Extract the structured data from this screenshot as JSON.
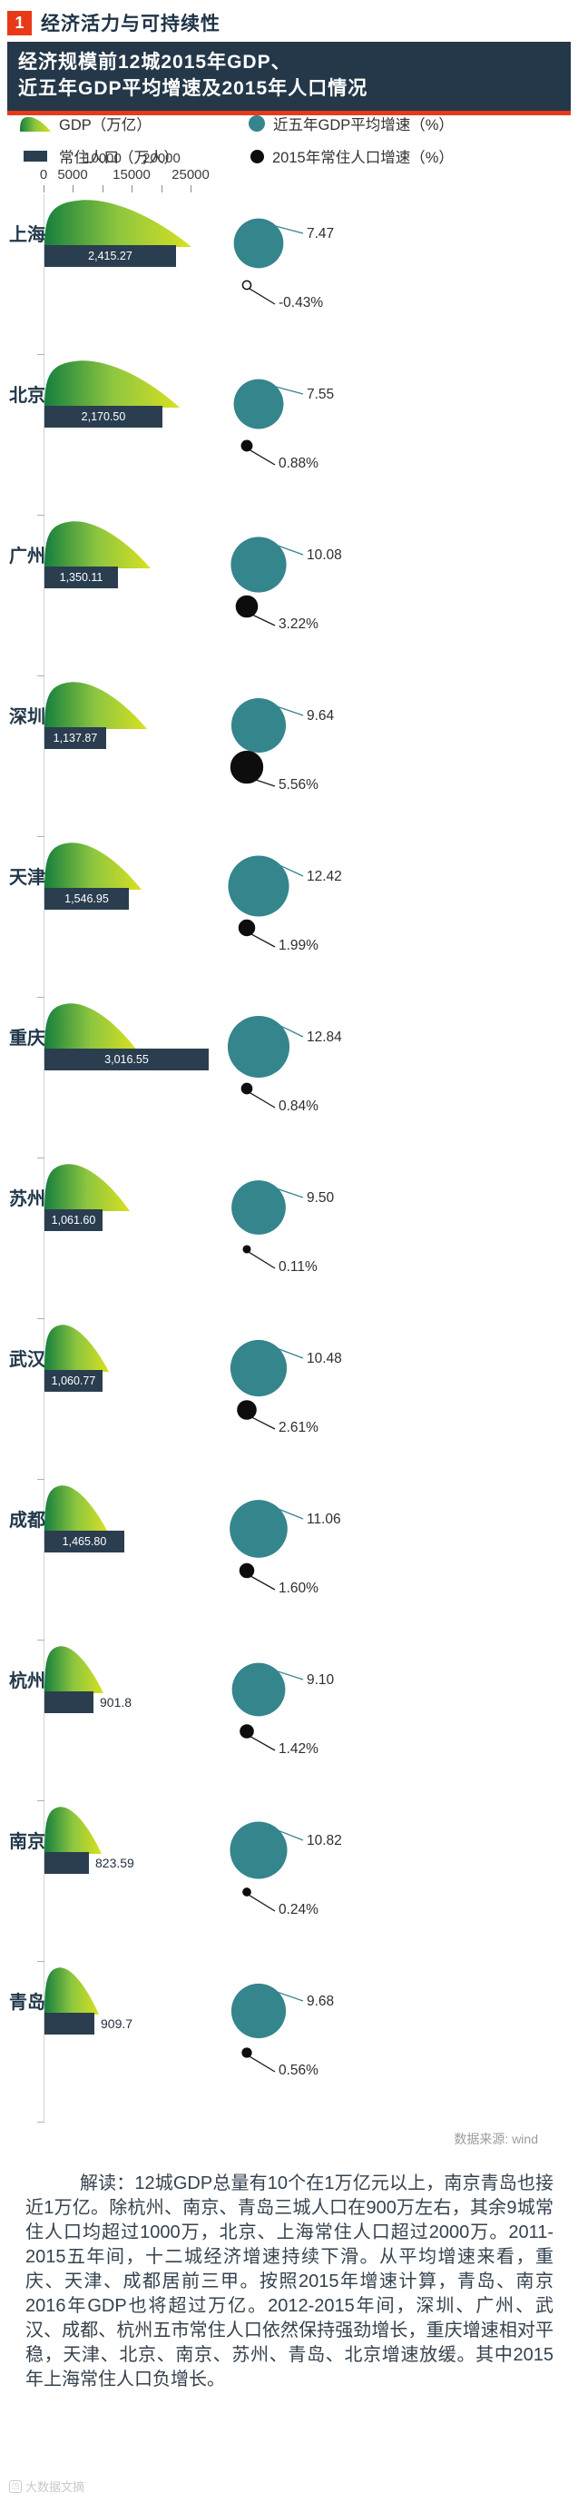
{
  "header": {
    "badge": "1",
    "title": "经济活力与可持续性"
  },
  "subtitle": {
    "line1": "经济规模前12城2015年GDP、",
    "line2": "近五年GDP平均增速及2015年人口情况"
  },
  "legend": {
    "items": [
      {
        "icon": "gdp-leaf-icon",
        "label": "GDP（万亿）"
      },
      {
        "icon": "gdp-growth-circle-icon",
        "label": "近五年GDP平均增速（%）"
      },
      {
        "icon": "population-bar-icon",
        "label": "常住人口（万人）"
      },
      {
        "icon": "population-growth-circle-icon",
        "label": "2015年常住人口增速（%）"
      }
    ]
  },
  "chart_data": {
    "type": "bar",
    "title": "经济规模前12城2015年GDP、近五年GDP平均增速及2015年人口情况",
    "categories": [
      "上海",
      "北京",
      "广州",
      "深圳",
      "天津",
      "重庆",
      "苏州",
      "武汉",
      "成都",
      "杭州",
      "南京",
      "青岛"
    ],
    "series": [
      {
        "name": "GDP（万亿）",
        "note": "estimated from leaf length against 0-25000 axis (亿)",
        "values": [
          2.5,
          2.3,
          1.81,
          1.75,
          1.65,
          1.57,
          1.45,
          1.09,
          1.08,
          1.01,
          0.97,
          0.93
        ]
      },
      {
        "name": "常住人口（万人）",
        "values": [
          2415.27,
          2170.5,
          1350.11,
          1137.87,
          1546.95,
          3016.55,
          1061.6,
          1060.77,
          1465.8,
          901.8,
          823.59,
          909.7
        ],
        "labels": [
          "2,415.27",
          "2,170.50",
          "1,350.11",
          "1,137.87",
          "1,546.95",
          "3,016.55",
          "1,061.60",
          "1,060.77",
          "1,465.80",
          "901.8",
          "823.59",
          "909.7"
        ]
      },
      {
        "name": "近五年GDP平均增速（%）",
        "values": [
          7.47,
          7.55,
          10.08,
          9.64,
          12.42,
          12.84,
          9.5,
          10.48,
          11.06,
          9.1,
          10.82,
          9.68
        ],
        "labels": [
          "7.47",
          "7.55",
          "10.08",
          "9.64",
          "12.42",
          "12.84",
          "9.50",
          "10.48",
          "11.06",
          "9.10",
          "10.82",
          "9.68"
        ]
      },
      {
        "name": "2015年常住人口增速（%）",
        "values": [
          -0.43,
          0.88,
          3.22,
          5.56,
          1.99,
          0.84,
          0.11,
          2.61,
          1.6,
          1.42,
          0.24,
          0.56
        ],
        "labels": [
          "-0.43%",
          "0.88%",
          "3.22%",
          "5.56%",
          "1.99%",
          "0.84%",
          "0.11%",
          "2.61%",
          "1.60%",
          "1.42%",
          "0.24%",
          "0.56%"
        ]
      }
    ],
    "x_axis": {
      "range": [
        0,
        25000
      ],
      "ticks_upper": [
        "10000",
        "20000"
      ],
      "ticks_lower": [
        "0",
        "5000",
        "15000",
        "25000"
      ]
    },
    "legend_position": "top",
    "grid": false
  },
  "source": "数据来源: wind",
  "analysis": "解读：12城GDP总量有10个在1万亿元以上，南京青岛也接近1万亿。除杭州、南京、青岛三城人口在900万左右，其余9城常住人口均超过1000万，北京、上海常住人口超过2000万。2011-2015五年间，十二城经济增速持续下滑。从平均增速来看，重庆、天津、成都居前三甲。按照2015年增速计算，青岛、南京2016年GDP也将超过万亿。2012-2015年间，深圳、广州、武汉、成都、杭州五市常住人口依然保持强劲增长，重庆增速相对平稳，天津、北京、南京、苏州、青岛、北京增速放缓。其中2015年上海常住人口负增长。",
  "watermark": "大数据文摘",
  "colors": {
    "accent_red": "#e83a17",
    "navy": "#2a3e50",
    "teal": "#35858d",
    "black": "#0d0d0d",
    "leaf_dark": "#157f3e",
    "leaf_mid": "#8dc63f",
    "leaf_light": "#d9e021"
  }
}
